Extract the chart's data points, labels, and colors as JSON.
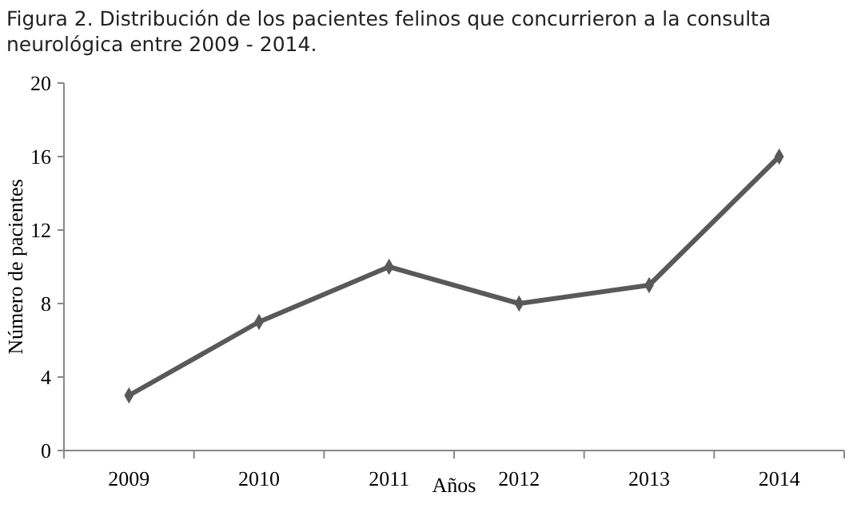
{
  "chart_data": {
    "type": "line",
    "title": "Figura 2. Distribución de los pacientes felinos que concurrieron a la consulta\nneurológica entre 2009 - 2014.",
    "xlabel": "Años",
    "ylabel": "Número de pacientes",
    "categories": [
      "2009",
      "2010",
      "2011",
      "2012",
      "2013",
      "2014"
    ],
    "series": [
      {
        "color": "#595959",
        "values": [
          3,
          7,
          10,
          8,
          9,
          16
        ]
      }
    ],
    "ylim": [
      0,
      20
    ],
    "yticks": [
      0,
      4,
      8,
      12,
      16,
      20
    ],
    "grid": false,
    "marker": "diamond",
    "line_style": "solid"
  }
}
